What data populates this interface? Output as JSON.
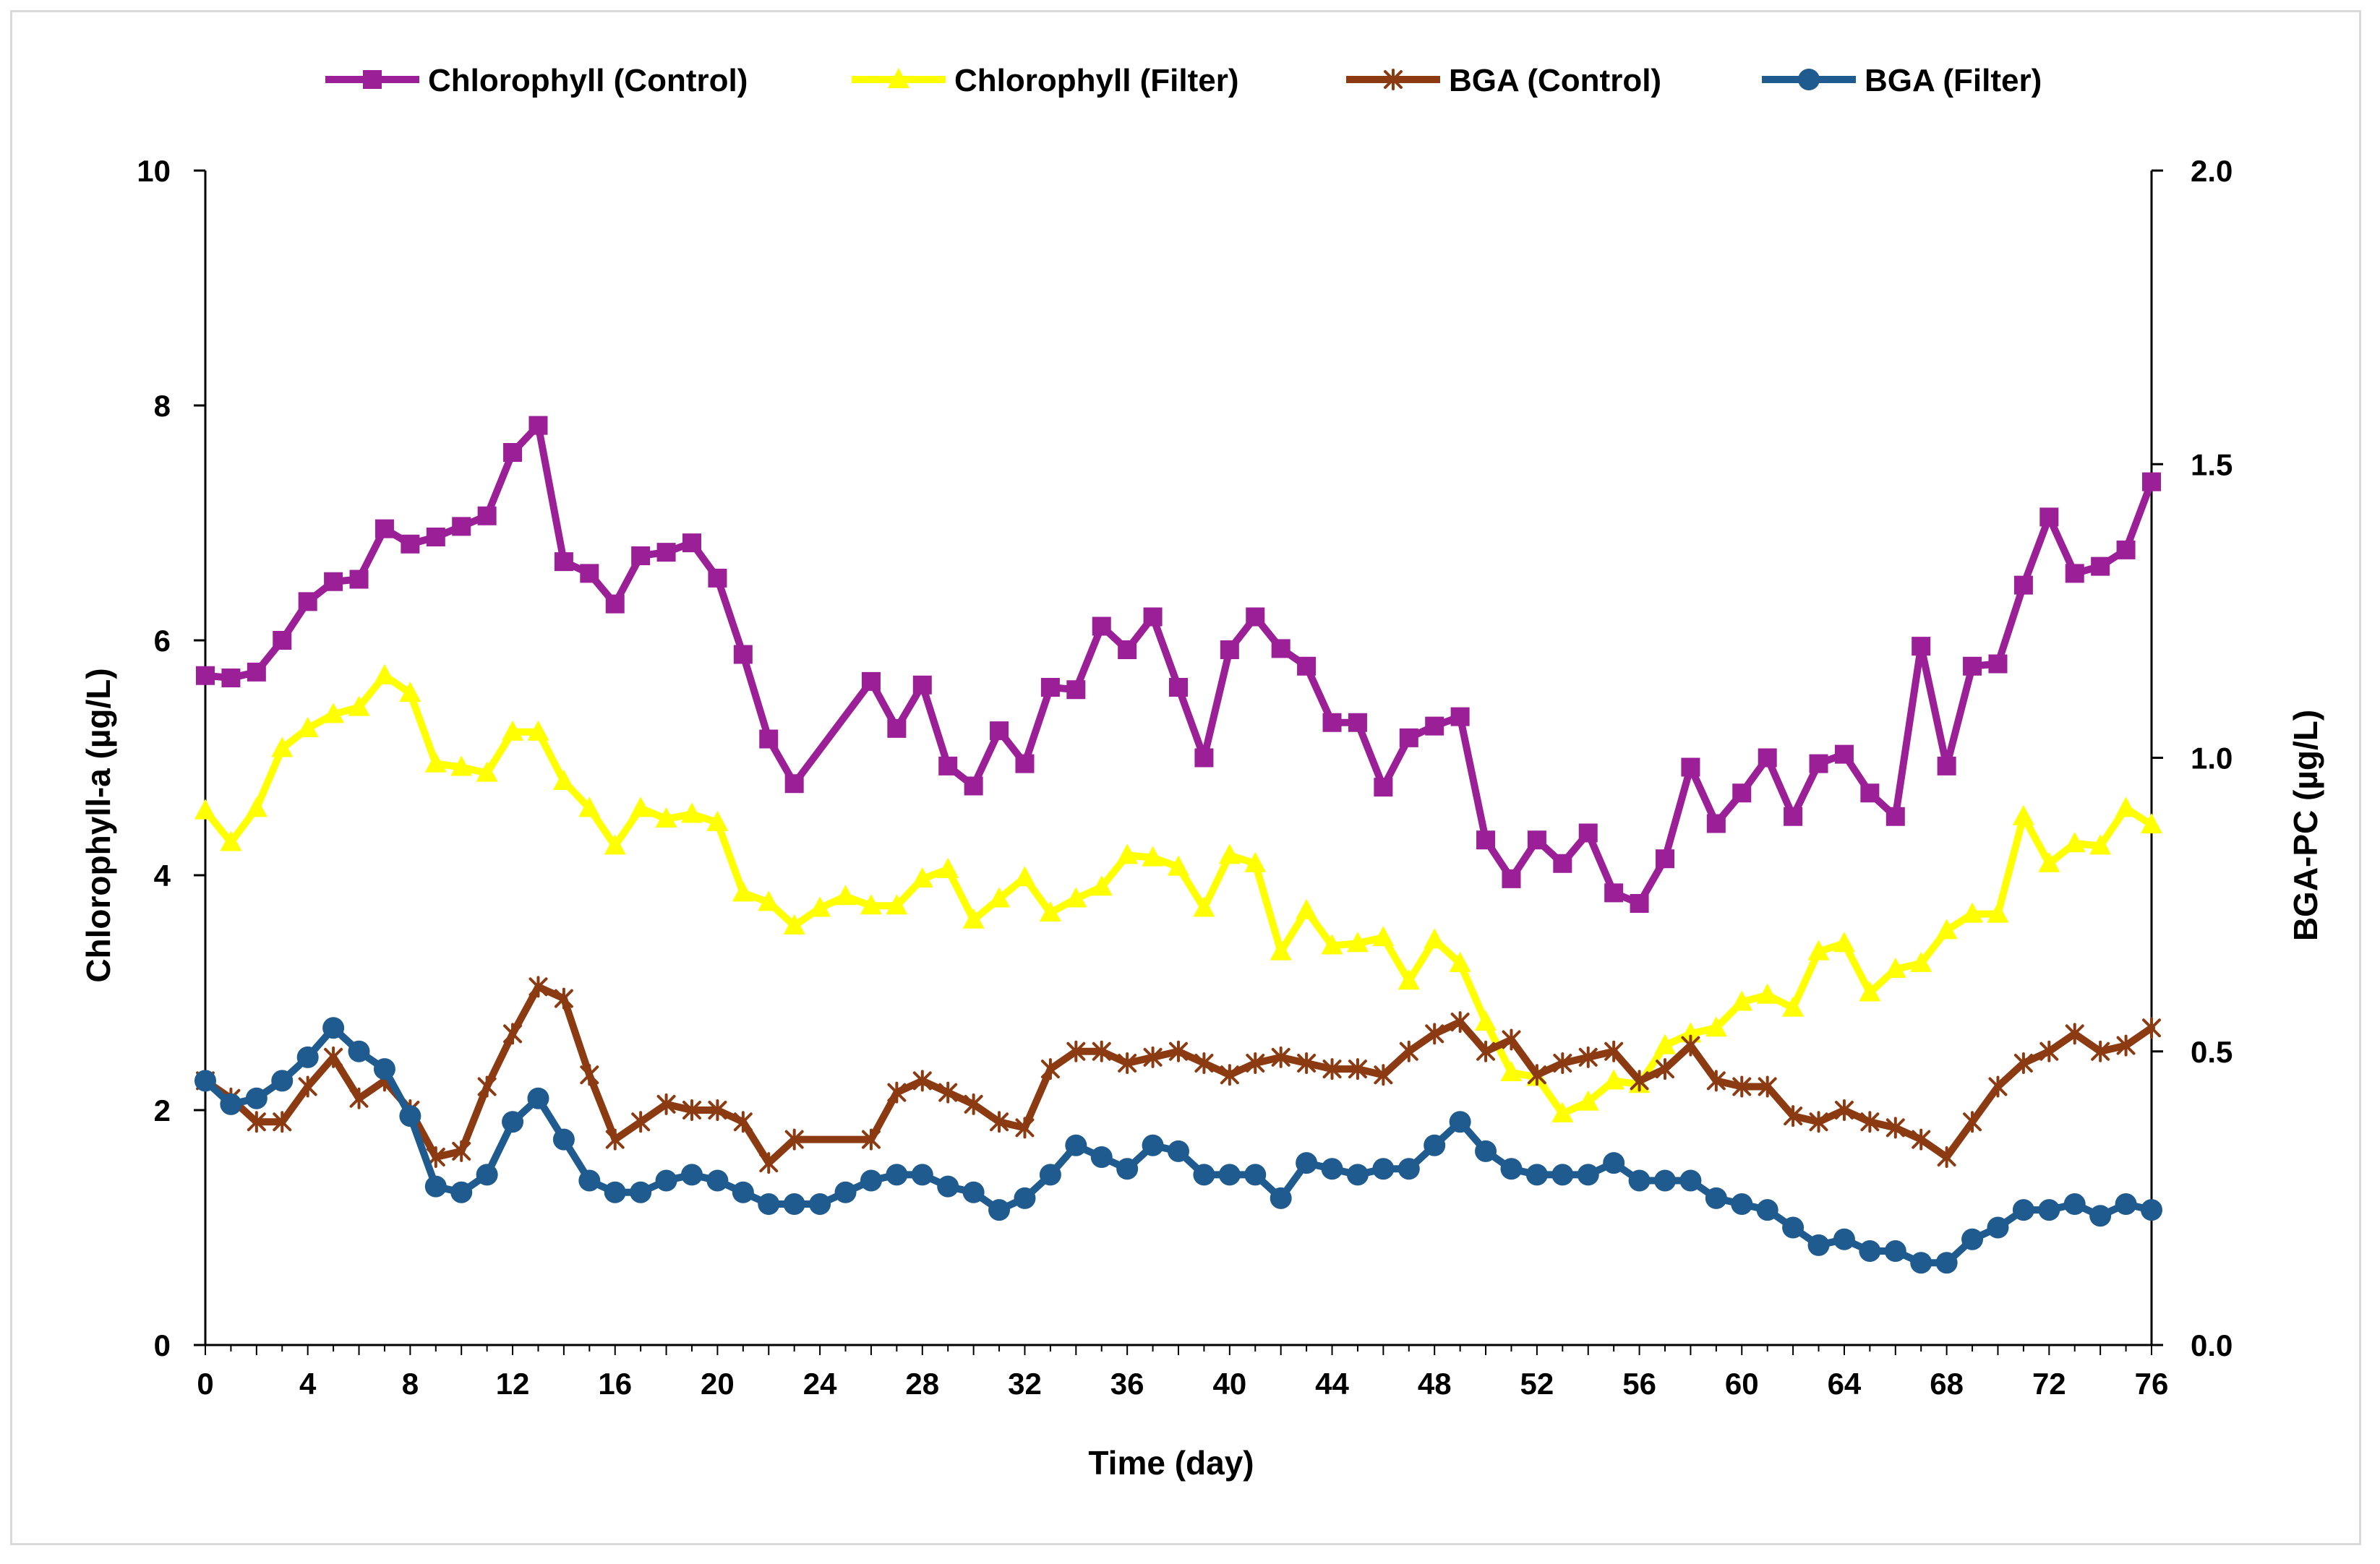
{
  "chart_data": {
    "type": "line",
    "xlabel": "Time (day)",
    "ylabel": "Chlorophyll-a (µg/L)",
    "y2label": "BGA-PC (µg/L)",
    "xlim": [
      0,
      76
    ],
    "ylim": [
      0,
      10
    ],
    "y2lim": [
      0,
      2.0
    ],
    "xticks": [
      0,
      4,
      8,
      12,
      16,
      20,
      24,
      28,
      32,
      36,
      40,
      44,
      48,
      52,
      56,
      60,
      64,
      68,
      72,
      76
    ],
    "xtick_labels": [
      "0",
      "4",
      "8",
      "12",
      "16",
      "20",
      "24",
      "28",
      "32",
      "36",
      "40",
      "44",
      "48",
      "52",
      "56",
      "60",
      "64",
      "68",
      "72",
      "76"
    ],
    "yticks": [
      0,
      2,
      4,
      6,
      8,
      10
    ],
    "ytick_labels": [
      "0",
      "2",
      "4",
      "6",
      "8",
      "10"
    ],
    "y2ticks": [
      0,
      0.5,
      1.0,
      1.5,
      2.0
    ],
    "y2tick_labels": [
      "0.0",
      "0.5",
      "1.0",
      "1.5",
      "2.0"
    ],
    "legend_position": "top-center",
    "grid": false,
    "series": [
      {
        "name": "Chlorophyll (Control)",
        "axis": "left",
        "color": "#9b1f97",
        "marker": "square",
        "x": [
          0,
          1,
          2,
          3,
          4,
          5,
          6,
          7,
          8,
          9,
          10,
          11,
          12,
          13,
          14,
          15,
          16,
          17,
          18,
          19,
          20,
          21,
          22,
          23,
          26,
          27,
          28,
          29,
          30,
          31,
          32,
          33,
          34,
          35,
          36,
          37,
          38,
          39,
          40,
          41,
          42,
          43,
          44,
          45,
          46,
          47,
          48,
          49,
          50,
          51,
          52,
          53,
          54,
          55,
          56,
          57,
          58,
          59,
          60,
          61,
          62,
          63,
          64,
          65,
          66,
          67,
          68,
          69,
          70,
          71,
          72,
          73,
          74,
          75,
          76
        ],
        "values": [
          5.7,
          5.68,
          5.73,
          6.0,
          6.33,
          6.5,
          6.52,
          6.95,
          6.82,
          6.88,
          6.97,
          7.06,
          7.6,
          7.83,
          6.67,
          6.57,
          6.31,
          6.72,
          6.75,
          6.83,
          6.53,
          5.88,
          5.16,
          4.78,
          5.65,
          5.25,
          5.62,
          4.93,
          4.76,
          5.23,
          4.95,
          5.6,
          5.58,
          6.12,
          5.92,
          6.2,
          5.6,
          5.0,
          5.92,
          6.2,
          5.93,
          5.78,
          5.3,
          5.3,
          4.75,
          5.17,
          5.27,
          5.35,
          4.3,
          3.97,
          4.3,
          4.1,
          4.36,
          3.85,
          3.76,
          4.14,
          4.92,
          4.44,
          4.7,
          5.0,
          4.5,
          4.95,
          5.03,
          4.7,
          4.5,
          5.95,
          4.93,
          5.78,
          5.8,
          6.47,
          7.05,
          6.57,
          6.63,
          6.77,
          7.35
        ]
      },
      {
        "name": "Chlorophyll (Filter)",
        "axis": "left",
        "color": "#ffff00",
        "marker": "triangle",
        "x": [
          0,
          1,
          2,
          3,
          4,
          5,
          6,
          7,
          8,
          9,
          10,
          11,
          12,
          13,
          14,
          15,
          16,
          17,
          18,
          19,
          20,
          21,
          22,
          23,
          24,
          25,
          26,
          27,
          28,
          29,
          30,
          31,
          32,
          33,
          34,
          35,
          36,
          37,
          38,
          39,
          40,
          41,
          42,
          43,
          44,
          45,
          46,
          47,
          48,
          49,
          50,
          51,
          52,
          53,
          54,
          55,
          56,
          57,
          58,
          59,
          60,
          61,
          62,
          63,
          64,
          65,
          66,
          67,
          68,
          69,
          70,
          71,
          72,
          73,
          74,
          75,
          76
        ],
        "values": [
          4.55,
          4.28,
          4.57,
          5.08,
          5.25,
          5.37,
          5.43,
          5.7,
          5.55,
          4.95,
          4.92,
          4.87,
          5.22,
          5.22,
          4.8,
          4.57,
          4.25,
          4.57,
          4.48,
          4.52,
          4.45,
          3.85,
          3.77,
          3.57,
          3.72,
          3.82,
          3.74,
          3.74,
          3.97,
          4.05,
          3.62,
          3.8,
          3.98,
          3.68,
          3.8,
          3.9,
          4.17,
          4.15,
          4.07,
          3.72,
          4.17,
          4.1,
          3.35,
          3.7,
          3.4,
          3.42,
          3.47,
          3.1,
          3.45,
          3.25,
          2.75,
          2.32,
          2.28,
          1.97,
          2.07,
          2.25,
          2.22,
          2.55,
          2.65,
          2.7,
          2.92,
          2.98,
          2.87,
          3.35,
          3.42,
          3.0,
          3.2,
          3.25,
          3.53,
          3.67,
          3.67,
          4.5,
          4.1,
          4.27,
          4.25,
          4.57,
          4.43
        ]
      },
      {
        "name": "BGA (Control)",
        "axis": "right",
        "color": "#8b3a12",
        "marker": "star",
        "x": [
          0,
          1,
          2,
          3,
          4,
          5,
          6,
          7,
          8,
          9,
          10,
          11,
          12,
          13,
          14,
          15,
          16,
          17,
          18,
          19,
          20,
          21,
          22,
          23,
          26,
          27,
          28,
          29,
          30,
          31,
          32,
          33,
          34,
          35,
          36,
          37,
          38,
          39,
          40,
          41,
          42,
          43,
          44,
          45,
          46,
          47,
          48,
          49,
          50,
          51,
          52,
          53,
          54,
          55,
          56,
          57,
          58,
          59,
          60,
          61,
          62,
          63,
          64,
          65,
          66,
          67,
          68,
          69,
          70,
          71,
          72,
          73,
          74,
          75,
          76
        ],
        "values": [
          0.45,
          0.42,
          0.38,
          0.38,
          0.44,
          0.49,
          0.42,
          0.45,
          0.4,
          0.32,
          0.33,
          0.44,
          0.53,
          0.61,
          0.59,
          0.46,
          0.35,
          0.38,
          0.41,
          0.4,
          0.4,
          0.38,
          0.31,
          0.35,
          0.35,
          0.43,
          0.45,
          0.43,
          0.41,
          0.38,
          0.37,
          0.47,
          0.5,
          0.5,
          0.48,
          0.49,
          0.5,
          0.48,
          0.46,
          0.48,
          0.49,
          0.48,
          0.47,
          0.47,
          0.46,
          0.5,
          0.53,
          0.55,
          0.5,
          0.52,
          0.46,
          0.48,
          0.49,
          0.5,
          0.45,
          0.47,
          0.51,
          0.45,
          0.44,
          0.44,
          0.39,
          0.38,
          0.4,
          0.38,
          0.37,
          0.35,
          0.32,
          0.38,
          0.44,
          0.48,
          0.5,
          0.53,
          0.5,
          0.51,
          0.54
        ]
      },
      {
        "name": "BGA (Filter)",
        "axis": "right",
        "color": "#1f5b8e",
        "marker": "circle",
        "x": [
          0,
          1,
          2,
          3,
          4,
          5,
          6,
          7,
          8,
          9,
          10,
          11,
          12,
          13,
          14,
          15,
          16,
          17,
          18,
          19,
          20,
          21,
          22,
          23,
          24,
          25,
          26,
          27,
          28,
          29,
          30,
          31,
          32,
          33,
          34,
          35,
          36,
          37,
          38,
          39,
          40,
          41,
          42,
          43,
          44,
          45,
          46,
          47,
          48,
          49,
          50,
          51,
          52,
          53,
          54,
          55,
          56,
          57,
          58,
          59,
          60,
          61,
          62,
          63,
          64,
          65,
          66,
          67,
          68,
          69,
          70,
          71,
          72,
          73,
          74,
          75,
          76
        ],
        "values": [
          0.45,
          0.41,
          0.42,
          0.45,
          0.49,
          0.54,
          0.5,
          0.47,
          0.39,
          0.27,
          0.26,
          0.29,
          0.38,
          0.42,
          0.35,
          0.28,
          0.26,
          0.26,
          0.28,
          0.29,
          0.28,
          0.26,
          0.24,
          0.24,
          0.24,
          0.26,
          0.28,
          0.29,
          0.29,
          0.27,
          0.26,
          0.23,
          0.25,
          0.29,
          0.34,
          0.32,
          0.3,
          0.34,
          0.33,
          0.29,
          0.29,
          0.29,
          0.25,
          0.31,
          0.3,
          0.29,
          0.3,
          0.3,
          0.34,
          0.38,
          0.33,
          0.3,
          0.29,
          0.29,
          0.29,
          0.31,
          0.28,
          0.28,
          0.28,
          0.25,
          0.24,
          0.23,
          0.2,
          0.17,
          0.18,
          0.16,
          0.16,
          0.14,
          0.14,
          0.18,
          0.2,
          0.23,
          0.23,
          0.24,
          0.22,
          0.24,
          0.23
        ]
      }
    ]
  }
}
